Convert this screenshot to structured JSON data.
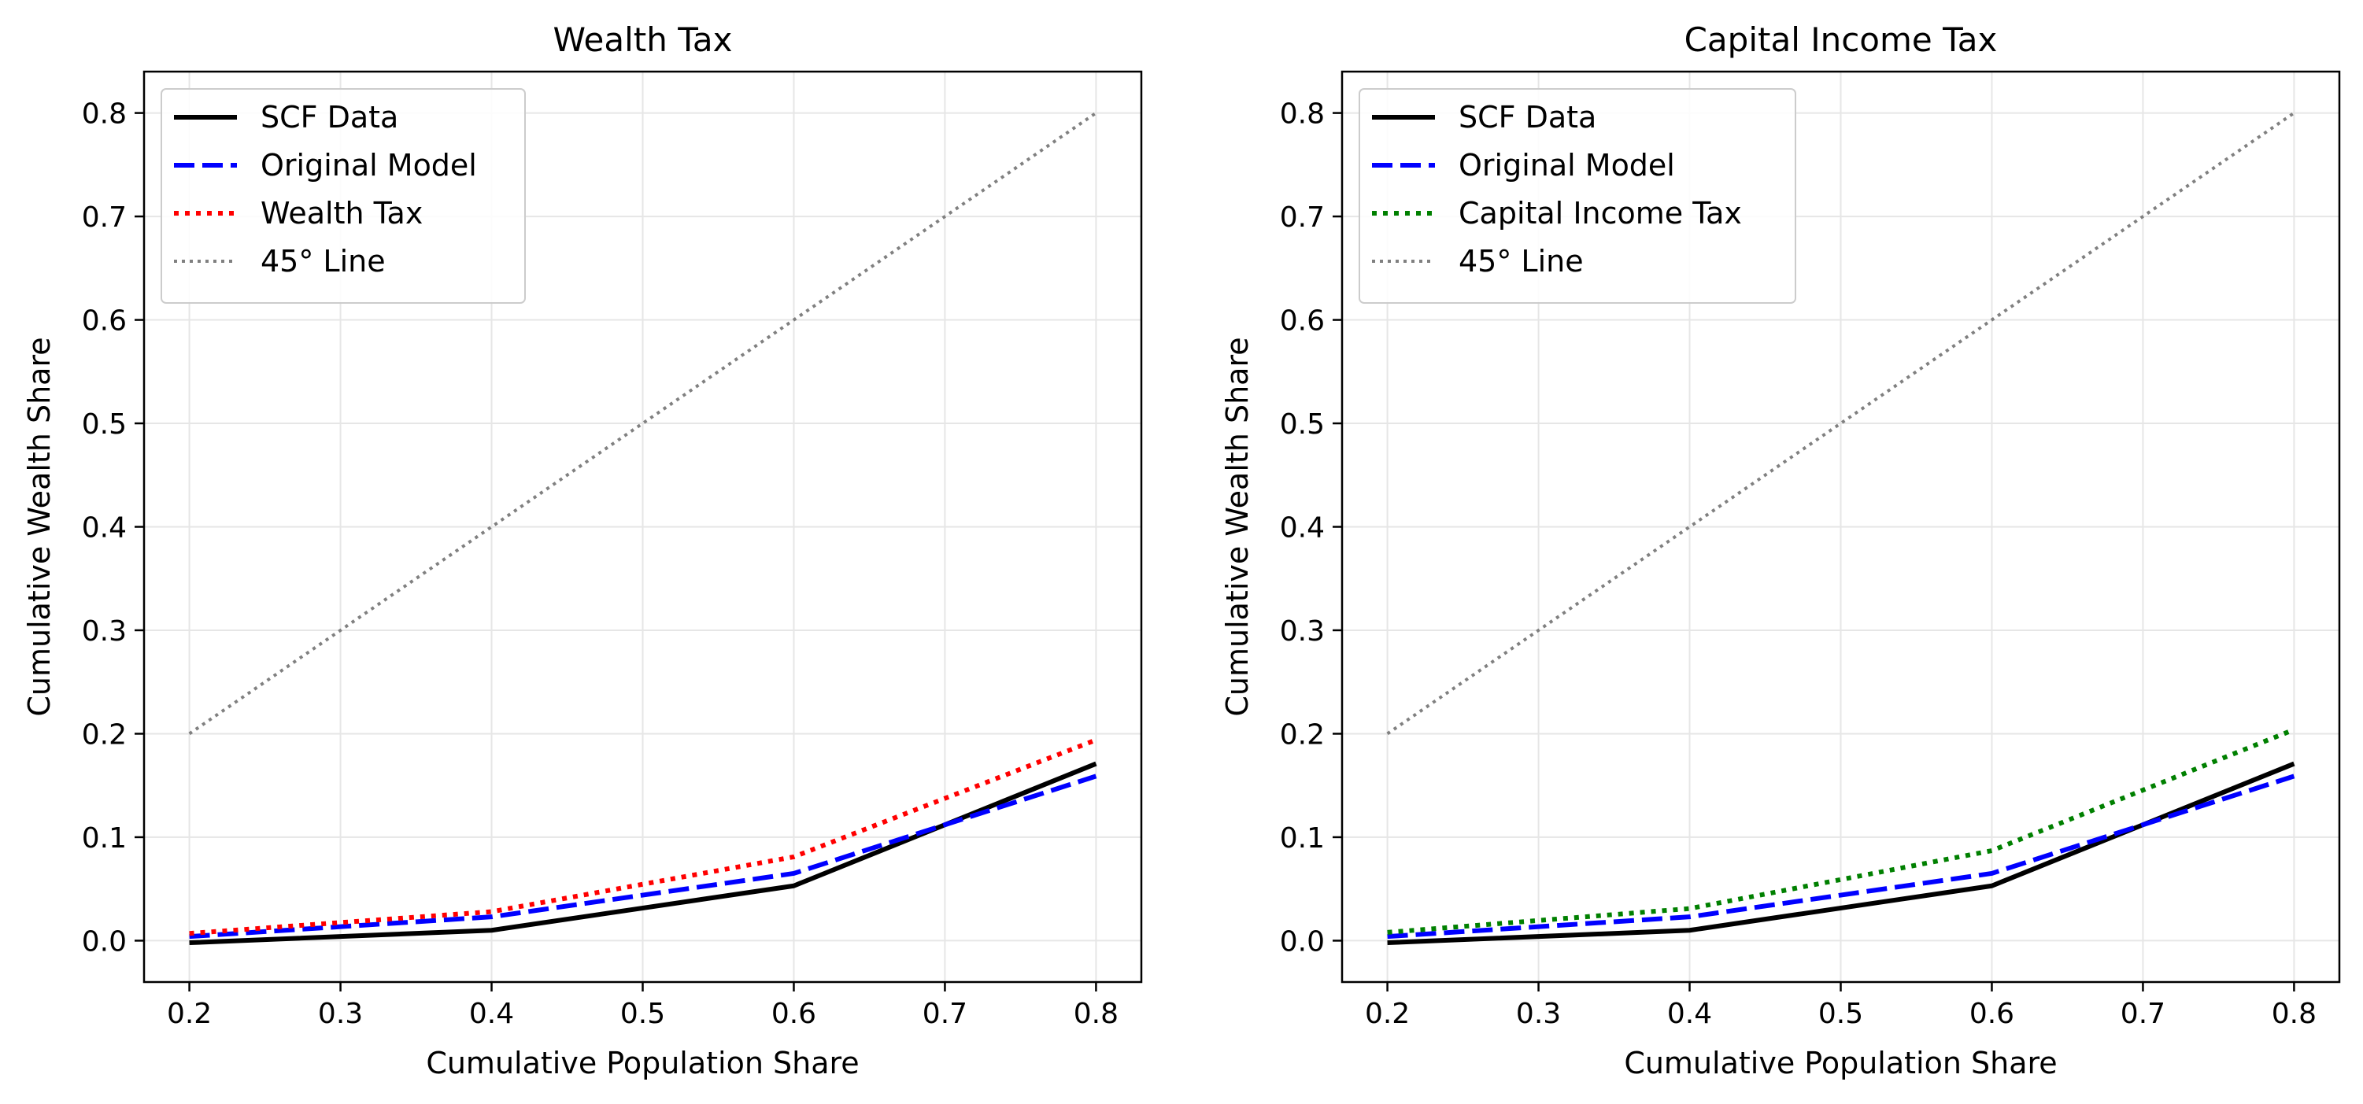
{
  "chart_data": [
    {
      "type": "line",
      "title": "Wealth Tax",
      "xlabel": "Cumulative Population Share",
      "ylabel": "Cumulative Wealth Share",
      "xlim": [
        0.17,
        0.83
      ],
      "ylim": [
        -0.04,
        0.84
      ],
      "xticks": [
        0.2,
        0.3,
        0.4,
        0.5,
        0.6,
        0.7,
        0.8
      ],
      "yticks": [
        0.0,
        0.1,
        0.2,
        0.3,
        0.4,
        0.5,
        0.6,
        0.7,
        0.8
      ],
      "grid": true,
      "legend_position": "top-left",
      "series": [
        {
          "name": "SCF Data",
          "style": "solid",
          "color": "#000000",
          "x": [
            0.2,
            0.4,
            0.6,
            0.8
          ],
          "y": [
            -0.002,
            0.01,
            0.053,
            0.171
          ]
        },
        {
          "name": "Original Model",
          "style": "dashed",
          "color": "#0000ff",
          "x": [
            0.2,
            0.4,
            0.6,
            0.8
          ],
          "y": [
            0.004,
            0.023,
            0.065,
            0.159
          ]
        },
        {
          "name": "Wealth Tax",
          "style": "dotted",
          "color": "#ff0000",
          "x": [
            0.2,
            0.4,
            0.6,
            0.8
          ],
          "y": [
            0.007,
            0.028,
            0.081,
            0.194
          ]
        },
        {
          "name": "45° Line",
          "style": "fine-dotted",
          "color": "#808080",
          "x": [
            0.2,
            0.8
          ],
          "y": [
            0.2,
            0.8
          ]
        }
      ]
    },
    {
      "type": "line",
      "title": "Capital Income Tax",
      "xlabel": "Cumulative Population Share",
      "ylabel": "Cumulative Wealth Share",
      "xlim": [
        0.17,
        0.83
      ],
      "ylim": [
        -0.04,
        0.84
      ],
      "xticks": [
        0.2,
        0.3,
        0.4,
        0.5,
        0.6,
        0.7,
        0.8
      ],
      "yticks": [
        0.0,
        0.1,
        0.2,
        0.3,
        0.4,
        0.5,
        0.6,
        0.7,
        0.8
      ],
      "grid": true,
      "legend_position": "top-left",
      "series": [
        {
          "name": "SCF Data",
          "style": "solid",
          "color": "#000000",
          "x": [
            0.2,
            0.4,
            0.6,
            0.8
          ],
          "y": [
            -0.002,
            0.01,
            0.053,
            0.171
          ]
        },
        {
          "name": "Original Model",
          "style": "dashed",
          "color": "#0000ff",
          "x": [
            0.2,
            0.4,
            0.6,
            0.8
          ],
          "y": [
            0.004,
            0.023,
            0.065,
            0.159
          ]
        },
        {
          "name": "Capital Income Tax",
          "style": "dotted",
          "color": "#008000",
          "x": [
            0.2,
            0.4,
            0.6,
            0.8
          ],
          "y": [
            0.008,
            0.031,
            0.087,
            0.204
          ]
        },
        {
          "name": "45° Line",
          "style": "fine-dotted",
          "color": "#808080",
          "x": [
            0.2,
            0.8
          ],
          "y": [
            0.2,
            0.8
          ]
        }
      ]
    }
  ]
}
